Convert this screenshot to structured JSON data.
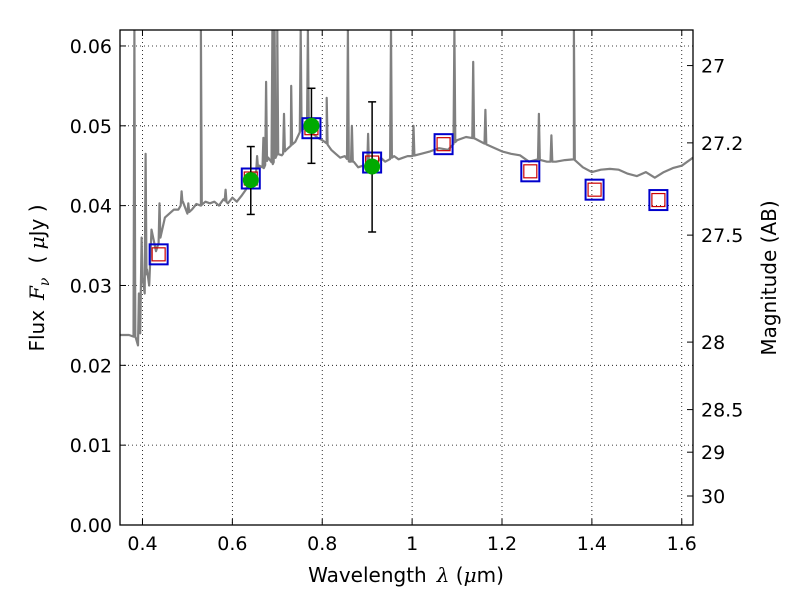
{
  "chart_data": {
    "type": "line",
    "title": "",
    "xlabel": {
      "prefix": "Wavelength",
      "symbol": "λ",
      "unit_open": " (",
      "unit_mu": "μ",
      "unit_rest": "m)"
    },
    "ylabel": {
      "prefix": "Flux",
      "symbol": "F",
      "subscript": "ν",
      "unit_open": "( ",
      "unit_mu": "μ",
      "unit_rest": "Jy )"
    },
    "y2label": "Magnitude (AB)",
    "xlim": [
      0.35,
      1.625
    ],
    "ylim": [
      0.0,
      0.062
    ],
    "x_ticks": [
      {
        "value": 0.4,
        "label": "0.4"
      },
      {
        "value": 0.6,
        "label": "0.6"
      },
      {
        "value": 0.8,
        "label": "0.8"
      },
      {
        "value": 1.0,
        "label": "1"
      },
      {
        "value": 1.2,
        "label": "1.2"
      },
      {
        "value": 1.4,
        "label": "1.4"
      },
      {
        "value": 1.6,
        "label": "1.6"
      }
    ],
    "y_ticks": [
      {
        "value": 0.0,
        "label": "0.00"
      },
      {
        "value": 0.01,
        "label": "0.01"
      },
      {
        "value": 0.02,
        "label": "0.02"
      },
      {
        "value": 0.03,
        "label": "0.03"
      },
      {
        "value": 0.04,
        "label": "0.04"
      },
      {
        "value": 0.05,
        "label": "0.05"
      },
      {
        "value": 0.06,
        "label": "0.06"
      }
    ],
    "y2_ticks": [
      {
        "mag": 27,
        "label": "27"
      },
      {
        "mag": 27.2,
        "label": "27.2"
      },
      {
        "mag": 27.5,
        "label": "27.5"
      },
      {
        "mag": 28,
        "label": "28"
      },
      {
        "mag": 28.5,
        "label": "28.5"
      },
      {
        "mag": 29,
        "label": "29"
      },
      {
        "mag": 30,
        "label": "30"
      }
    ],
    "grid": true,
    "colors": {
      "sed": "#808080",
      "observed": "#00aa00",
      "box_outer": "#0000cc",
      "box_inner": "#cc0000",
      "errorbar": "#000000"
    },
    "sed_model": {
      "x": [
        0.35,
        0.37,
        0.385,
        0.39,
        0.392,
        0.395,
        0.398,
        0.4,
        0.405,
        0.41,
        0.415,
        0.42,
        0.43,
        0.44,
        0.45,
        0.46,
        0.47,
        0.48,
        0.49,
        0.5,
        0.51,
        0.52,
        0.53,
        0.54,
        0.55,
        0.56,
        0.57,
        0.58,
        0.59,
        0.6,
        0.61,
        0.62,
        0.63,
        0.64,
        0.65,
        0.66,
        0.67,
        0.68,
        0.69,
        0.7,
        0.71,
        0.72,
        0.73,
        0.74,
        0.75,
        0.76,
        0.77,
        0.78,
        0.79,
        0.8,
        0.81,
        0.82,
        0.83,
        0.84,
        0.85,
        0.86,
        0.87,
        0.88,
        0.89,
        0.9,
        0.91,
        0.92,
        0.93,
        0.94,
        0.95,
        0.96,
        0.97,
        0.98,
        0.99,
        1.0,
        1.02,
        1.04,
        1.06,
        1.08,
        1.1,
        1.12,
        1.14,
        1.16,
        1.18,
        1.2,
        1.22,
        1.24,
        1.26,
        1.28,
        1.3,
        1.32,
        1.34,
        1.36,
        1.38,
        1.4,
        1.42,
        1.44,
        1.46,
        1.48,
        1.5,
        1.52,
        1.54,
        1.56,
        1.58,
        1.6,
        1.625
      ],
      "y": [
        0.0238,
        0.0238,
        0.0235,
        0.0225,
        0.029,
        0.024,
        0.036,
        0.031,
        0.029,
        0.032,
        0.03,
        0.037,
        0.0343,
        0.036,
        0.0385,
        0.039,
        0.0395,
        0.0395,
        0.0405,
        0.039,
        0.0395,
        0.0402,
        0.04,
        0.0405,
        0.0403,
        0.0405,
        0.04,
        0.0408,
        0.0403,
        0.041,
        0.0405,
        0.0412,
        0.042,
        0.0432,
        0.044,
        0.045,
        0.0447,
        0.046,
        0.0452,
        0.0465,
        0.0463,
        0.047,
        0.0475,
        0.048,
        0.0492,
        0.0497,
        0.0498,
        0.049,
        0.0485,
        0.0482,
        0.0478,
        0.047,
        0.0465,
        0.046,
        0.0462,
        0.0455,
        0.0455,
        0.0448,
        0.045,
        0.0448,
        0.045,
        0.0452,
        0.046,
        0.0455,
        0.0458,
        0.0462,
        0.0458,
        0.046,
        0.0462,
        0.0462,
        0.0465,
        0.0468,
        0.0472,
        0.047,
        0.0482,
        0.0486,
        0.0484,
        0.0478,
        0.0473,
        0.0468,
        0.0465,
        0.0463,
        0.0455,
        0.0458,
        0.0455,
        0.0455,
        0.0457,
        0.0458,
        0.0448,
        0.0442,
        0.0445,
        0.0446,
        0.0445,
        0.044,
        0.0437,
        0.0442,
        0.0435,
        0.0442,
        0.0447,
        0.045,
        0.046
      ],
      "spikes": [
        {
          "x": 0.382,
          "y": 0.062
        },
        {
          "x": 0.407,
          "y": 0.0465
        },
        {
          "x": 0.438,
          "y": 0.0403
        },
        {
          "x": 0.487,
          "y": 0.0418
        },
        {
          "x": 0.502,
          "y": 0.0403
        },
        {
          "x": 0.53,
          "y": 0.062
        },
        {
          "x": 0.585,
          "y": 0.042
        },
        {
          "x": 0.655,
          "y": 0.0462
        },
        {
          "x": 0.669,
          "y": 0.0485
        },
        {
          "x": 0.675,
          "y": 0.0555
        },
        {
          "x": 0.689,
          "y": 0.062
        },
        {
          "x": 0.694,
          "y": 0.062
        },
        {
          "x": 0.7,
          "y": 0.062
        },
        {
          "x": 0.715,
          "y": 0.0515
        },
        {
          "x": 0.731,
          "y": 0.055
        },
        {
          "x": 0.752,
          "y": 0.062
        },
        {
          "x": 0.768,
          "y": 0.062
        },
        {
          "x": 0.81,
          "y": 0.0535
        },
        {
          "x": 0.857,
          "y": 0.062
        },
        {
          "x": 0.866,
          "y": 0.05
        },
        {
          "x": 0.902,
          "y": 0.049
        },
        {
          "x": 0.953,
          "y": 0.062
        },
        {
          "x": 1.003,
          "y": 0.05
        },
        {
          "x": 1.094,
          "y": 0.062
        },
        {
          "x": 1.136,
          "y": 0.058
        },
        {
          "x": 1.163,
          "y": 0.052
        },
        {
          "x": 1.282,
          "y": 0.0515
        },
        {
          "x": 1.31,
          "y": 0.0488
        },
        {
          "x": 1.36,
          "y": 0.062
        }
      ]
    },
    "model_photometry": [
      {
        "x": 0.436,
        "y": 0.0339
      },
      {
        "x": 0.641,
        "y": 0.0434
      },
      {
        "x": 0.776,
        "y": 0.0497
      },
      {
        "x": 0.911,
        "y": 0.0454
      },
      {
        "x": 1.07,
        "y": 0.0477
      },
      {
        "x": 1.263,
        "y": 0.0443
      },
      {
        "x": 1.406,
        "y": 0.042
      },
      {
        "x": 1.548,
        "y": 0.0407
      }
    ],
    "observed": [
      {
        "x": 0.641,
        "y": 0.0432,
        "yerr_low": 0.0389,
        "yerr_high": 0.0474
      },
      {
        "x": 0.776,
        "y": 0.05,
        "yerr_low": 0.0453,
        "yerr_high": 0.0547
      },
      {
        "x": 0.911,
        "y": 0.0449,
        "yerr_low": 0.0367,
        "yerr_high": 0.053
      }
    ]
  }
}
